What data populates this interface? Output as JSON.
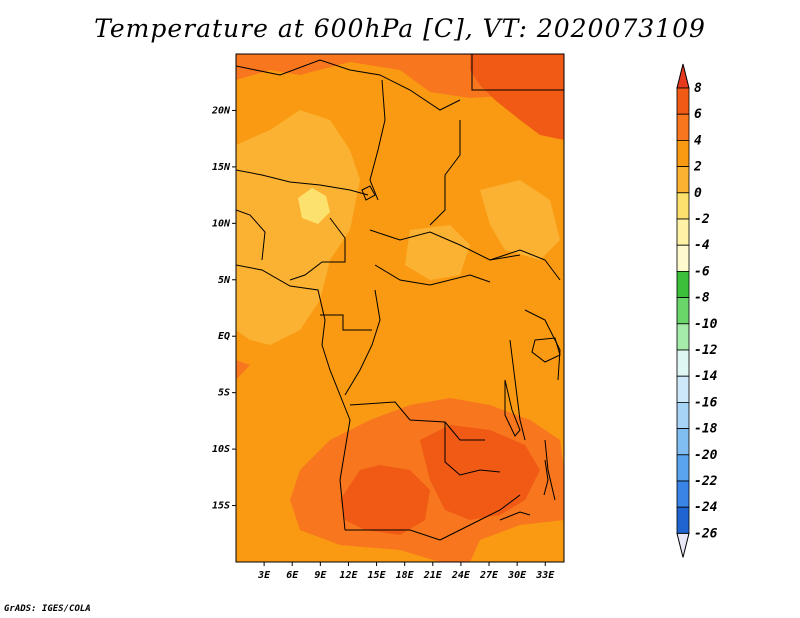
{
  "title": "Temperature at 600hPa [C], VT: 2020073109",
  "footer": "GrADS: IGES/COLA",
  "map": {
    "lon_range": [
      0,
      35
    ],
    "lat_range": [
      -20,
      25
    ],
    "lat_ticks": [
      "20N",
      "15N",
      "10N",
      "5N",
      "EQ",
      "5S",
      "10S",
      "15S"
    ],
    "lat_values": [
      20,
      15,
      10,
      5,
      0,
      -5,
      -10,
      -15
    ],
    "lon_ticks": [
      "3E",
      "6E",
      "9E",
      "12E",
      "15E",
      "18E",
      "21E",
      "24E",
      "27E",
      "30E",
      "33E"
    ],
    "lon_values": [
      3,
      6,
      9,
      12,
      15,
      18,
      21,
      24,
      27,
      30,
      33
    ],
    "dominant_band": "2 to 4",
    "warm_region": "4 to 6 over Angola, Zambia, Zimbabwe",
    "hot_region": "6 to 8 over northeast (Sudan/Egypt border)",
    "cool_region": "0 to 2 over Nigeria and Cameroon"
  },
  "colorbar": {
    "labels": [
      "8",
      "6",
      "4",
      "2",
      "0",
      "-2",
      "-4",
      "-6",
      "-8",
      "-10",
      "-12",
      "-14",
      "-16",
      "-18",
      "-20",
      "-22",
      "-24",
      "-26"
    ],
    "colors": [
      "#e63a1e",
      "#f05a14",
      "#f7761e",
      "#f99a12",
      "#fbb232",
      "#fde16e",
      "#fff2a6",
      "#fffacd",
      "#3cc03c",
      "#6ad66a",
      "#a5ecaa",
      "#dff7f3",
      "#cde8f8",
      "#a6d3f6",
      "#80bef2",
      "#5aa4ee",
      "#3a84e6",
      "#2064d2",
      "#1040b6",
      "#0a108c"
    ]
  }
}
